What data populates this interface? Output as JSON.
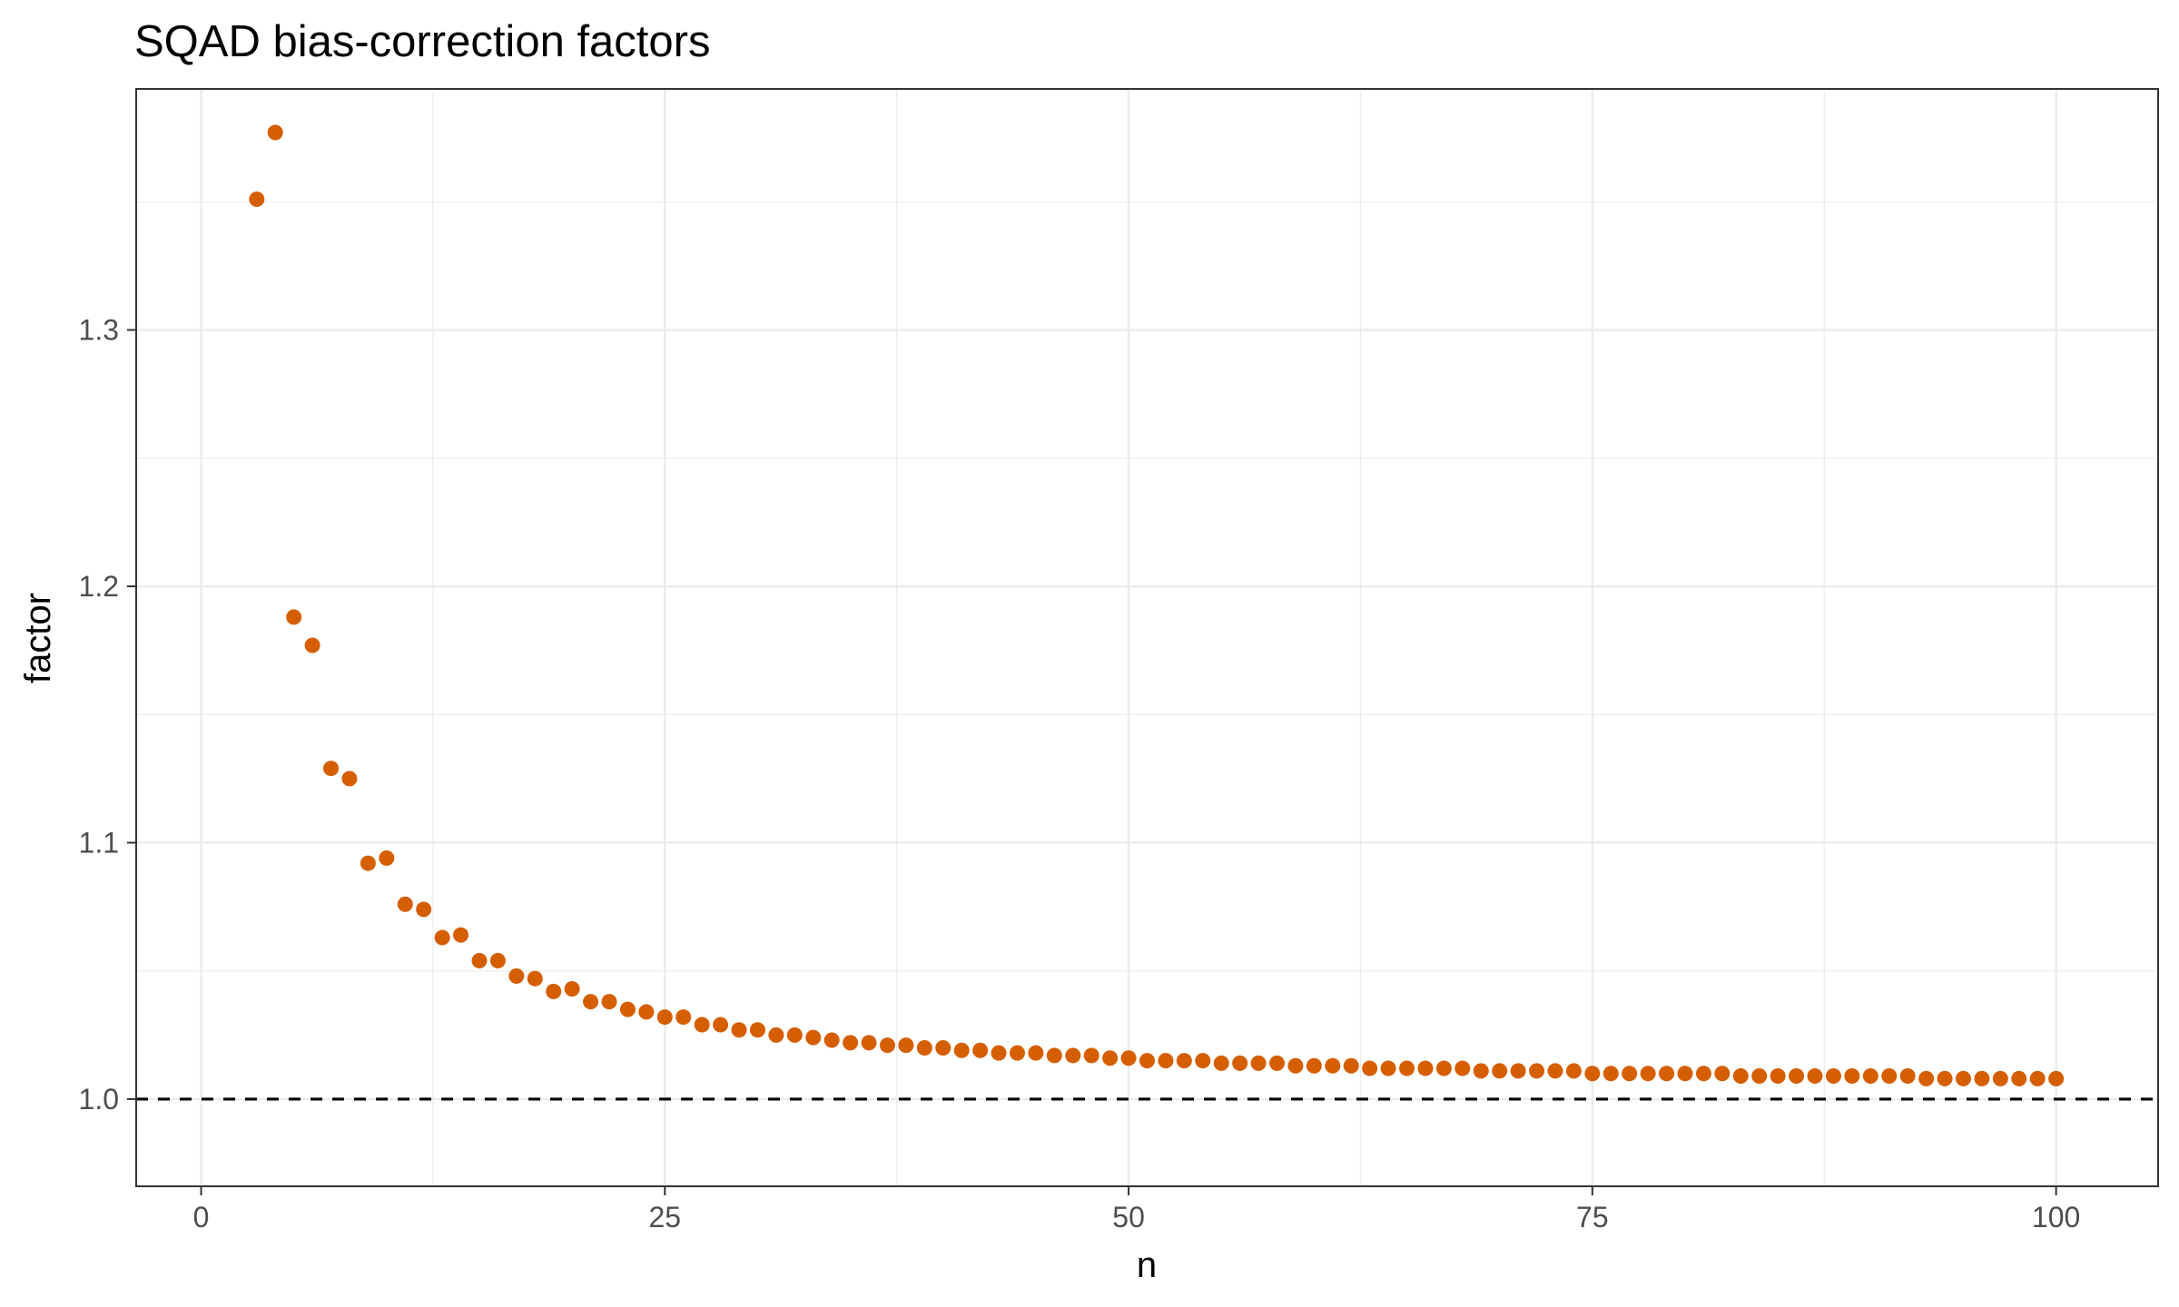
{
  "chart_data": {
    "type": "scatter",
    "title": "SQAD bias-correction factors",
    "xlabel": "n",
    "ylabel": "factor",
    "xlim": [
      -3.5,
      105.5
    ],
    "ylim": [
      0.966,
      1.394
    ],
    "xticks": [
      0,
      25,
      50,
      75,
      100
    ],
    "xtick_labels": [
      "0",
      "25",
      "50",
      "75",
      "100"
    ],
    "yticks": [
      1.0,
      1.1,
      1.2,
      1.3
    ],
    "ytick_labels": [
      "1.0",
      "1.1",
      "1.2",
      "1.3"
    ],
    "grid": true,
    "legend": "none",
    "reference_line": {
      "y": 1.0,
      "style": "dashed",
      "color": "#000000"
    },
    "colors": {
      "points": "#d55e00",
      "grid": "#ebebeb",
      "panel_border": "#333333"
    },
    "series": [
      {
        "x": [
          3,
          4,
          5,
          6,
          7,
          8,
          9,
          10,
          11,
          12,
          13,
          14,
          15,
          16,
          17,
          18,
          19,
          20,
          21,
          22,
          23,
          24,
          25,
          26,
          27,
          28,
          29,
          30,
          31,
          32,
          33,
          34,
          35,
          36,
          37,
          38,
          39,
          40,
          41,
          42,
          43,
          44,
          45,
          46,
          47,
          48,
          49,
          50,
          51,
          52,
          53,
          54,
          55,
          56,
          57,
          58,
          59,
          60,
          61,
          62,
          63,
          64,
          65,
          66,
          67,
          68,
          69,
          70,
          71,
          72,
          73,
          74,
          75,
          76,
          77,
          78,
          79,
          80,
          81,
          82,
          83,
          84,
          85,
          86,
          87,
          88,
          89,
          90,
          91,
          92,
          93,
          94,
          95,
          96,
          97,
          98,
          99,
          100
        ],
        "y": [
          1.351,
          1.377,
          1.188,
          1.177,
          1.129,
          1.125,
          1.092,
          1.094,
          1.076,
          1.074,
          1.063,
          1.064,
          1.054,
          1.054,
          1.048,
          1.047,
          1.042,
          1.043,
          1.038,
          1.038,
          1.035,
          1.034,
          1.032,
          1.032,
          1.029,
          1.029,
          1.027,
          1.027,
          1.025,
          1.025,
          1.024,
          1.023,
          1.022,
          1.022,
          1.021,
          1.021,
          1.02,
          1.02,
          1.019,
          1.019,
          1.018,
          1.018,
          1.018,
          1.017,
          1.017,
          1.017,
          1.016,
          1.016,
          1.015,
          1.015,
          1.015,
          1.015,
          1.014,
          1.014,
          1.014,
          1.014,
          1.013,
          1.013,
          1.013,
          1.013,
          1.012,
          1.012,
          1.012,
          1.012,
          1.012,
          1.012,
          1.011,
          1.011,
          1.011,
          1.011,
          1.011,
          1.011,
          1.01,
          1.01,
          1.01,
          1.01,
          1.01,
          1.01,
          1.01,
          1.01,
          1.009,
          1.009,
          1.009,
          1.009,
          1.009,
          1.009,
          1.009,
          1.009,
          1.009,
          1.009,
          1.008,
          1.008,
          1.008,
          1.008,
          1.008,
          1.008,
          1.008,
          1.008
        ]
      }
    ]
  }
}
